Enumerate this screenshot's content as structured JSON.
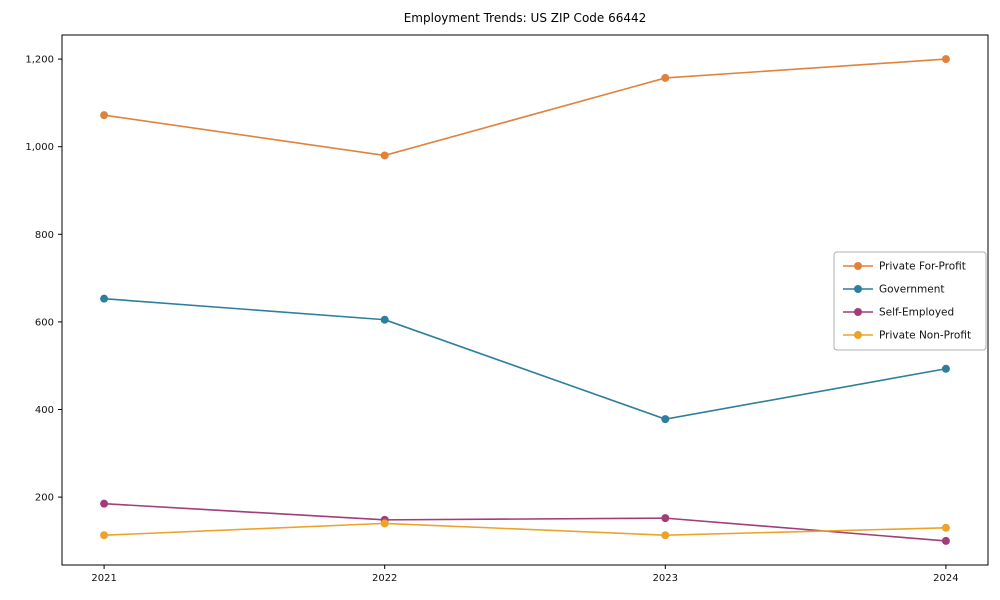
{
  "title": "Employment Trends: US ZIP Code 66442",
  "chart_data": {
    "type": "line",
    "title": "Employment Trends: US ZIP Code 66442",
    "xlabel": "",
    "ylabel": "",
    "x": [
      2021,
      2022,
      2023,
      2024
    ],
    "xticks": [
      2021,
      2022,
      2023,
      2024
    ],
    "xtick_labels": [
      "2021",
      "2022",
      "2023",
      "2024"
    ],
    "yticks": [
      200,
      400,
      600,
      800,
      1000,
      1200
    ],
    "ytick_labels": [
      "200",
      "400",
      "600",
      "800",
      "1,000",
      "1,200"
    ],
    "ylim": [
      45,
      1255
    ],
    "xlim": [
      2020.85,
      2024.15
    ],
    "grid": false,
    "marker": "circle",
    "legend_position": "center right",
    "legend_entries": [
      "Private For-Profit",
      "Government",
      "Self-Employed",
      "Private Non-Profit"
    ],
    "series": [
      {
        "name": "Private For-Profit",
        "color": "#e0823c",
        "values": [
          1072,
          980,
          1157,
          1200
        ]
      },
      {
        "name": "Government",
        "color": "#2d7f9d",
        "values": [
          653,
          605,
          378,
          493
        ]
      },
      {
        "name": "Self-Employed",
        "color": "#a23d78",
        "values": [
          185,
          148,
          152,
          100
        ]
      },
      {
        "name": "Private Non-Profit",
        "color": "#eca32a",
        "values": [
          113,
          140,
          113,
          130
        ]
      }
    ]
  }
}
